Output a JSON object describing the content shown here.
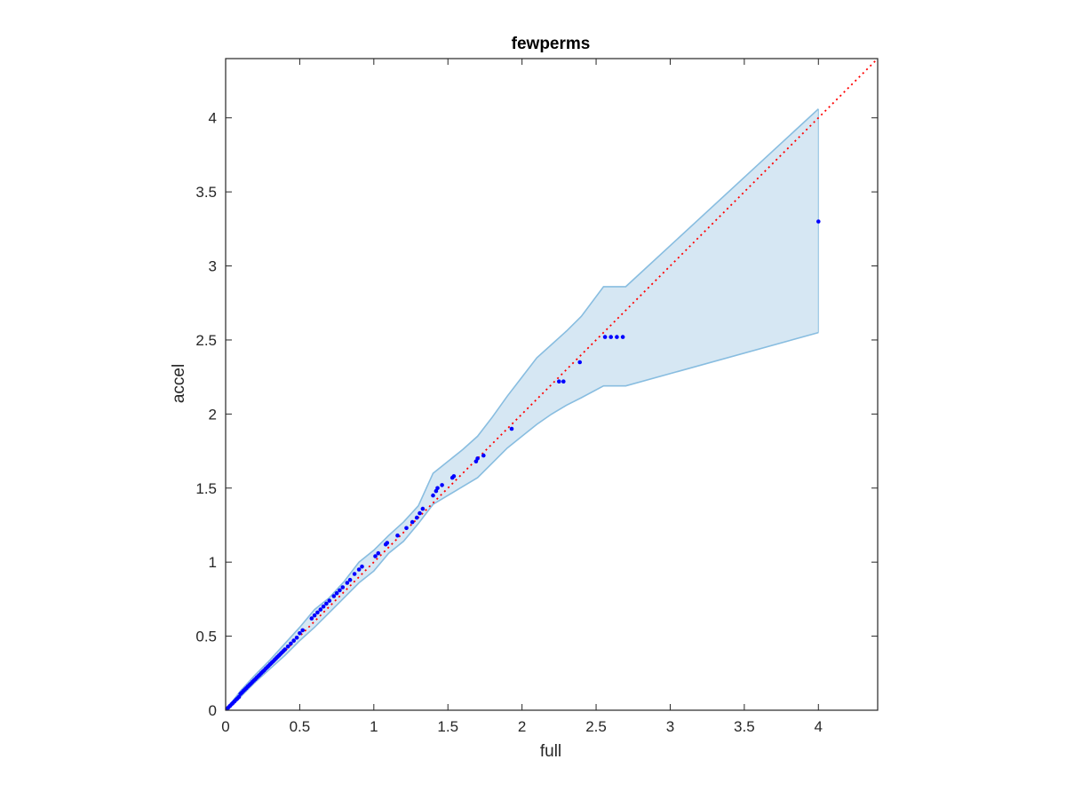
{
  "chart_data": {
    "type": "scatter",
    "title": "fewperms",
    "xlabel": "full",
    "ylabel": "accel",
    "xlim": [
      0,
      4.4
    ],
    "ylim": [
      0,
      4.4
    ],
    "xticks": [
      0,
      0.5,
      1,
      1.5,
      2,
      2.5,
      3,
      3.5,
      4
    ],
    "yticks": [
      0,
      0.5,
      1,
      1.5,
      2,
      2.5,
      3,
      3.5,
      4
    ],
    "xtick_labels": [
      "0",
      "0.5",
      "1",
      "1.5",
      "2",
      "2.5",
      "3",
      "3.5",
      "4"
    ],
    "ytick_labels": [
      "0",
      "0.5",
      "1",
      "1.5",
      "2",
      "2.5",
      "3",
      "3.5",
      "4"
    ],
    "grid": false,
    "colors": {
      "points": "#0000ff",
      "identity_line": "#ff0000",
      "band_fill": "#d6e7f3",
      "band_edge": "#88bde0",
      "axes": "#262626"
    },
    "identity_line": {
      "x": [
        0,
        4.4
      ],
      "y": [
        0,
        4.4
      ],
      "style": "dotted"
    },
    "band": {
      "upper": [
        [
          0,
          0
        ],
        [
          0.1,
          0.13
        ],
        [
          0.2,
          0.24
        ],
        [
          0.3,
          0.34
        ],
        [
          0.4,
          0.45
        ],
        [
          0.5,
          0.56
        ],
        [
          0.6,
          0.68
        ],
        [
          0.7,
          0.76
        ],
        [
          0.8,
          0.87
        ],
        [
          0.9,
          1.0
        ],
        [
          1.0,
          1.08
        ],
        [
          1.1,
          1.18
        ],
        [
          1.2,
          1.27
        ],
        [
          1.3,
          1.38
        ],
        [
          1.4,
          1.6
        ],
        [
          1.5,
          1.68
        ],
        [
          1.6,
          1.76
        ],
        [
          1.7,
          1.85
        ],
        [
          1.8,
          1.98
        ],
        [
          1.9,
          2.12
        ],
        [
          2.0,
          2.25
        ],
        [
          2.1,
          2.38
        ],
        [
          2.2,
          2.47
        ],
        [
          2.3,
          2.56
        ],
        [
          2.4,
          2.66
        ],
        [
          2.55,
          2.86
        ],
        [
          2.7,
          2.86
        ],
        [
          4.0,
          4.06
        ]
      ],
      "lower": [
        [
          0,
          0
        ],
        [
          0.1,
          0.09
        ],
        [
          0.2,
          0.19
        ],
        [
          0.3,
          0.28
        ],
        [
          0.4,
          0.37
        ],
        [
          0.5,
          0.47
        ],
        [
          0.6,
          0.56
        ],
        [
          0.7,
          0.66
        ],
        [
          0.8,
          0.76
        ],
        [
          0.9,
          0.86
        ],
        [
          1.0,
          0.94
        ],
        [
          1.1,
          1.06
        ],
        [
          1.2,
          1.14
        ],
        [
          1.3,
          1.26
        ],
        [
          1.4,
          1.39
        ],
        [
          1.5,
          1.45
        ],
        [
          1.6,
          1.51
        ],
        [
          1.7,
          1.57
        ],
        [
          1.8,
          1.67
        ],
        [
          1.9,
          1.77
        ],
        [
          2.0,
          1.85
        ],
        [
          2.1,
          1.93
        ],
        [
          2.2,
          2.0
        ],
        [
          2.3,
          2.06
        ],
        [
          2.4,
          2.11
        ],
        [
          2.55,
          2.19
        ],
        [
          2.7,
          2.19
        ],
        [
          4.0,
          2.55
        ]
      ]
    },
    "points": {
      "x": [
        0.01,
        0.02,
        0.03,
        0.04,
        0.05,
        0.06,
        0.07,
        0.08,
        0.09,
        0.1,
        0.11,
        0.12,
        0.13,
        0.14,
        0.15,
        0.16,
        0.17,
        0.18,
        0.19,
        0.2,
        0.21,
        0.22,
        0.23,
        0.24,
        0.25,
        0.26,
        0.27,
        0.28,
        0.29,
        0.3,
        0.31,
        0.32,
        0.33,
        0.34,
        0.35,
        0.36,
        0.37,
        0.38,
        0.39,
        0.4,
        0.42,
        0.44,
        0.46,
        0.48,
        0.5,
        0.52,
        0.58,
        0.6,
        0.62,
        0.64,
        0.66,
        0.68,
        0.7,
        0.73,
        0.75,
        0.77,
        0.79,
        0.82,
        0.84,
        0.87,
        0.9,
        0.92,
        1.01,
        1.03,
        1.08,
        1.09,
        1.16,
        1.22,
        1.26,
        1.29,
        1.31,
        1.33,
        1.4,
        1.42,
        1.43,
        1.46,
        1.53,
        1.54,
        1.69,
        1.7,
        1.74,
        1.93,
        2.25,
        2.28,
        2.39,
        2.56,
        2.6,
        2.64,
        2.68,
        4.0
      ],
      "y": [
        0.01,
        0.02,
        0.03,
        0.04,
        0.05,
        0.06,
        0.07,
        0.08,
        0.09,
        0.11,
        0.12,
        0.13,
        0.14,
        0.15,
        0.16,
        0.17,
        0.18,
        0.19,
        0.2,
        0.21,
        0.22,
        0.23,
        0.24,
        0.25,
        0.26,
        0.27,
        0.28,
        0.29,
        0.3,
        0.31,
        0.32,
        0.33,
        0.34,
        0.35,
        0.36,
        0.37,
        0.38,
        0.39,
        0.4,
        0.41,
        0.43,
        0.45,
        0.47,
        0.49,
        0.52,
        0.54,
        0.62,
        0.64,
        0.66,
        0.68,
        0.7,
        0.72,
        0.74,
        0.77,
        0.79,
        0.81,
        0.83,
        0.86,
        0.88,
        0.92,
        0.95,
        0.97,
        1.04,
        1.06,
        1.12,
        1.13,
        1.18,
        1.23,
        1.27,
        1.3,
        1.33,
        1.36,
        1.45,
        1.48,
        1.5,
        1.52,
        1.57,
        1.58,
        1.68,
        1.7,
        1.72,
        1.9,
        2.22,
        2.22,
        2.35,
        2.52,
        2.52,
        2.52,
        2.52,
        3.3
      ]
    }
  }
}
